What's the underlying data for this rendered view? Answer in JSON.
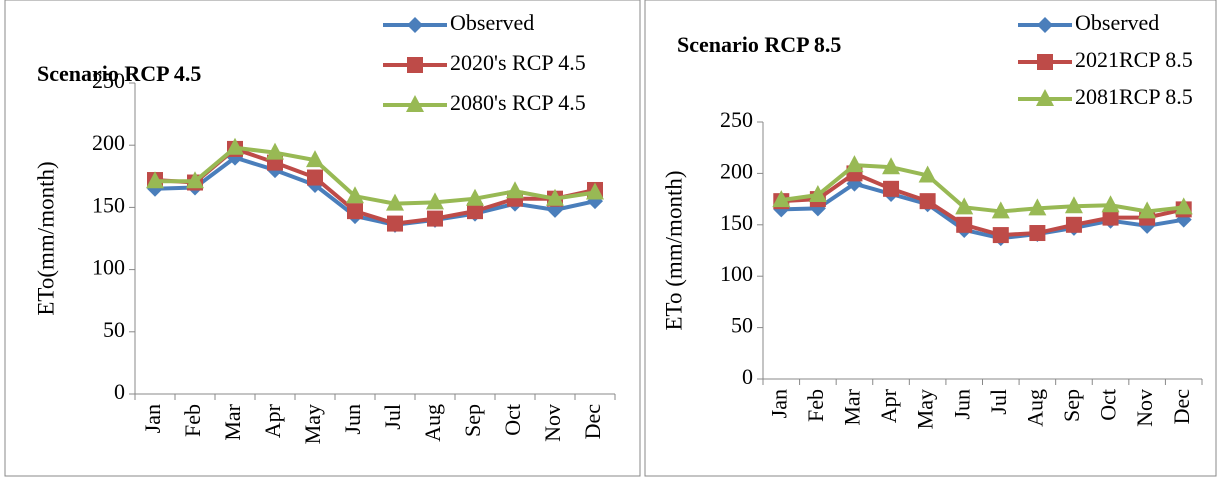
{
  "chart_data": [
    {
      "type": "line",
      "title": "Scenario RCP 4.5",
      "y_label": "ETo(mm/month)",
      "categories": [
        "Jan",
        "Feb",
        "Mar",
        "Apr",
        "May",
        "Jun",
        "Jul",
        "Aug",
        "Sep",
        "Oct",
        "Nov",
        "Dec"
      ],
      "ylim": [
        0,
        250
      ],
      "yticks": [
        0,
        50,
        100,
        150,
        200,
        250
      ],
      "grid": false,
      "legend": "top-right",
      "series": [
        {
          "name": "Observed",
          "color": "#4a7ebb",
          "marker": "diamond",
          "values": [
            165,
            166,
            190,
            180,
            168,
            143,
            136,
            140,
            145,
            153,
            148,
            155
          ]
        },
        {
          "name": "2020's RCP 4.5",
          "color": "#be4b48",
          "marker": "square",
          "values": [
            172,
            170,
            197,
            186,
            174,
            147,
            137,
            141,
            147,
            157,
            157,
            164
          ]
        },
        {
          "name": "2080's RCP 4.5",
          "color": "#98b954",
          "marker": "triangle",
          "values": [
            171,
            171,
            198,
            194,
            188,
            159,
            153,
            154,
            157,
            163,
            157,
            162
          ]
        }
      ]
    },
    {
      "type": "line",
      "title": "Scenario RCP 8.5",
      "y_label": "ETo (mm/month)",
      "categories": [
        "Jan",
        "Feb",
        "Mar",
        "Apr",
        "May",
        "Jun",
        "Jul",
        "Aug",
        "Sep",
        "Oct",
        "Nov",
        "Dec"
      ],
      "ylim": [
        0,
        250
      ],
      "yticks": [
        0,
        50,
        100,
        150,
        200,
        250
      ],
      "grid": false,
      "legend": "top-right",
      "series": [
        {
          "name": "Observed",
          "color": "#4a7ebb",
          "marker": "diamond",
          "values": [
            165,
            166,
            190,
            180,
            170,
            145,
            137,
            141,
            147,
            154,
            149,
            155
          ]
        },
        {
          "name": "2021RCP 8.5",
          "color": "#be4b48",
          "marker": "square",
          "values": [
            173,
            175,
            200,
            185,
            173,
            150,
            140,
            142,
            150,
            157,
            157,
            165
          ]
        },
        {
          "name": "2081RCP 8.5",
          "color": "#98b954",
          "marker": "triangle",
          "values": [
            174,
            179,
            208,
            206,
            198,
            167,
            163,
            166,
            168,
            169,
            163,
            167
          ]
        }
      ]
    }
  ]
}
